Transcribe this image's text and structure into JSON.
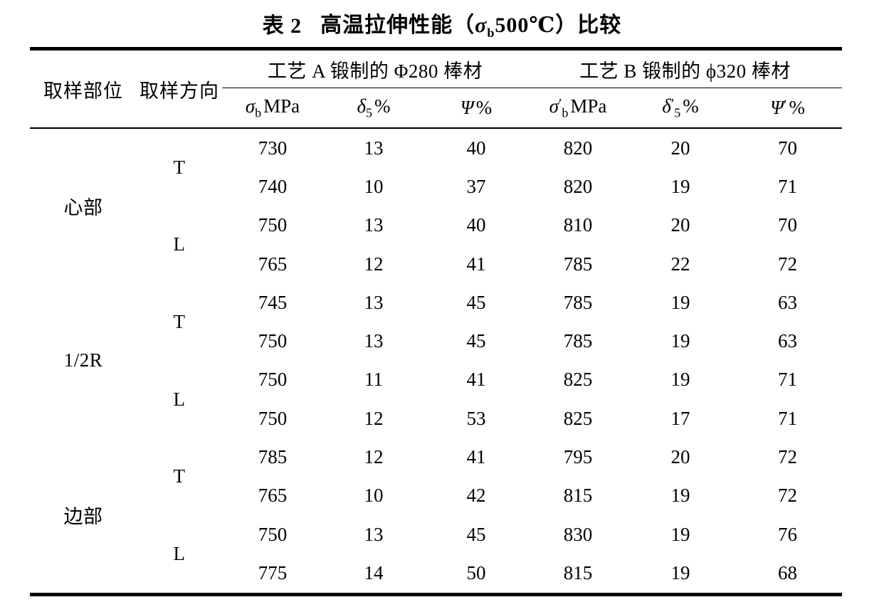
{
  "table": {
    "title": {
      "label": "表 2",
      "text_pre": "高温拉伸性能（",
      "sym": "σ",
      "sym_sub": "b",
      "text_post": "500℃）比较"
    },
    "header": {
      "part": "取样部位",
      "direction": "取样方向",
      "group_a": "工艺 A 锻制的 Φ280 棒材",
      "group_b": "工艺 B 锻制的 ϕ320 棒材",
      "subcolumns": [
        {
          "sym": "σ",
          "prime": "",
          "sub": "b",
          "unit": "MPa"
        },
        {
          "sym": "δ",
          "prime": "",
          "sub": "5",
          "unit": "%"
        },
        {
          "sym": "Ψ",
          "prime": "",
          "sub": "",
          "unit": "%"
        },
        {
          "sym": "σ",
          "prime": "′",
          "sub": "b",
          "unit": "MPa"
        },
        {
          "sym": "δ",
          "prime": "′",
          "sub": "5",
          "unit": "%"
        },
        {
          "sym": "Ψ",
          "prime": "′",
          "sub": "",
          "unit": "%"
        }
      ]
    },
    "rows": [
      {
        "part": "心部",
        "part_span": 4,
        "dir": "T",
        "dir_span": 2,
        "values": [
          730,
          13,
          40,
          820,
          20,
          70
        ]
      },
      {
        "values": [
          740,
          10,
          37,
          820,
          19,
          71
        ]
      },
      {
        "dir": "L",
        "dir_span": 2,
        "values": [
          750,
          13,
          40,
          810,
          20,
          70
        ]
      },
      {
        "values": [
          765,
          12,
          41,
          785,
          22,
          72
        ]
      },
      {
        "part": "1/2R",
        "part_span": 4,
        "dir": "T",
        "dir_span": 2,
        "values": [
          745,
          13,
          45,
          785,
          19,
          63
        ]
      },
      {
        "values": [
          750,
          13,
          45,
          785,
          19,
          63
        ]
      },
      {
        "dir": "L",
        "dir_span": 2,
        "values": [
          750,
          11,
          41,
          825,
          19,
          71
        ]
      },
      {
        "values": [
          750,
          12,
          53,
          825,
          17,
          71
        ]
      },
      {
        "part": "边部",
        "part_span": 4,
        "dir": "T",
        "dir_span": 2,
        "values": [
          785,
          12,
          41,
          795,
          20,
          72
        ]
      },
      {
        "values": [
          765,
          10,
          42,
          815,
          19,
          72
        ]
      },
      {
        "dir": "L",
        "dir_span": 2,
        "values": [
          750,
          13,
          45,
          830,
          19,
          76
        ]
      },
      {
        "values": [
          775,
          14,
          50,
          815,
          19,
          68
        ]
      }
    ]
  }
}
